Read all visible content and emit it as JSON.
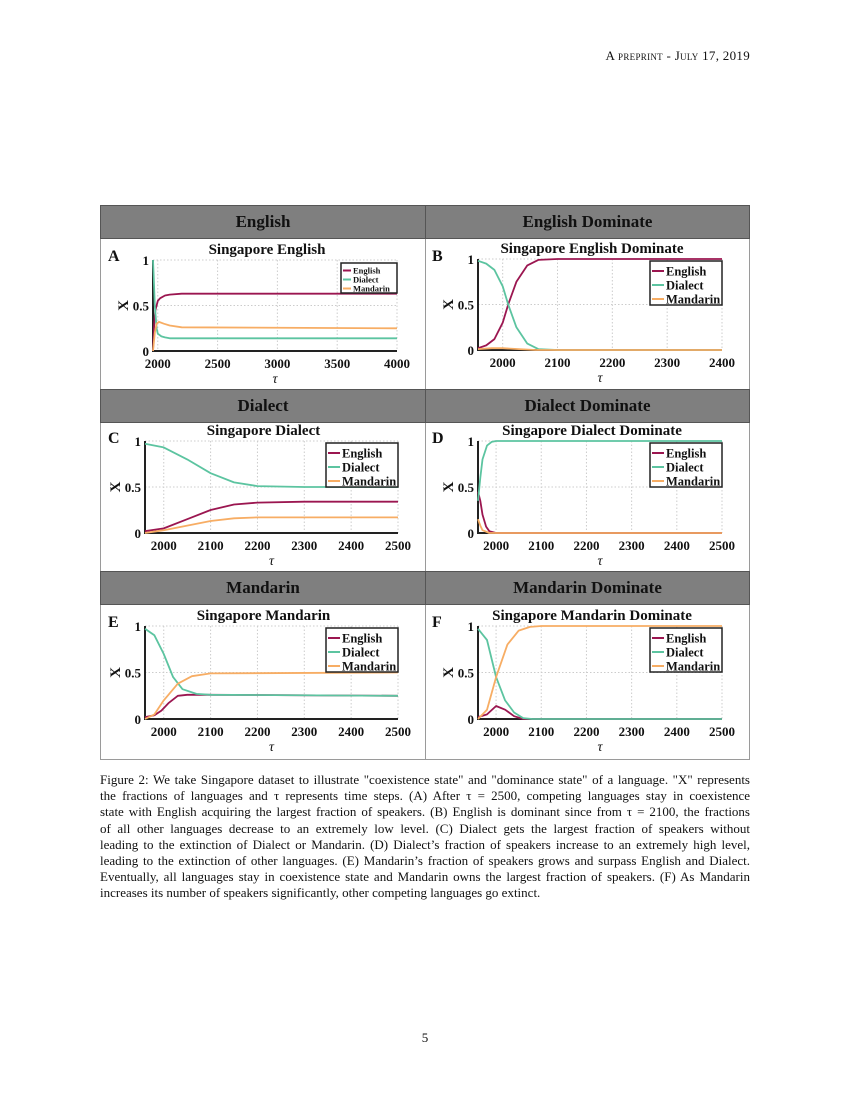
{
  "header": {
    "running_head": "A preprint - July 17, 2019"
  },
  "figure": {
    "row_headers": [
      "English",
      "English Dominate",
      "Dialect",
      "Dialect Dominate",
      "Mandarin",
      "Mandarin Dominate"
    ],
    "colors": {
      "English": "#9b1650",
      "Dialect": "#5cc4a0",
      "Mandarin": "#f7ad64",
      "header_bar": "#7f7f7f"
    }
  },
  "chart_data": [
    {
      "panel": "A",
      "type": "line",
      "title": "Singapore English",
      "xlabel": "τ",
      "ylabel": "X",
      "xlim": [
        1960,
        4000
      ],
      "ylim": [
        0,
        1
      ],
      "xticks": [
        "2000",
        "2500",
        "3000",
        "3500",
        "4000"
      ],
      "xtick_values": [
        2000,
        2500,
        3000,
        3500,
        4000
      ],
      "yticks": [
        "0",
        "0.5",
        "1"
      ],
      "grid": true,
      "legend": "top-right",
      "series": [
        {
          "name": "English",
          "x": [
            1960,
            1970,
            1980,
            2000,
            2020,
            2060,
            2100,
            2200,
            4000
          ],
          "y": [
            0,
            0.3,
            0.45,
            0.55,
            0.58,
            0.61,
            0.62,
            0.63,
            0.63
          ]
        },
        {
          "name": "Dialect",
          "x": [
            1960,
            1965,
            1975,
            1990,
            2000,
            2030,
            2060,
            2100,
            4000
          ],
          "y": [
            1,
            0.85,
            0.5,
            0.25,
            0.19,
            0.16,
            0.15,
            0.14,
            0.14
          ]
        },
        {
          "name": "Mandarin",
          "x": [
            1960,
            1975,
            1990,
            2010,
            2050,
            2100,
            2200,
            4000
          ],
          "y": [
            0,
            0.2,
            0.3,
            0.32,
            0.3,
            0.28,
            0.26,
            0.25
          ]
        }
      ]
    },
    {
      "panel": "B",
      "type": "line",
      "title": "Singapore English Dominate",
      "xlabel": "τ",
      "ylabel": "X",
      "xlim": [
        1955,
        2400
      ],
      "ylim": [
        0,
        1
      ],
      "xticks": [
        "2000",
        "2100",
        "2200",
        "2300",
        "2400"
      ],
      "xtick_values": [
        2000,
        2100,
        2200,
        2300,
        2400
      ],
      "yticks": [
        "0",
        "0.5",
        "1"
      ],
      "grid": true,
      "legend": "top-right",
      "series": [
        {
          "name": "English",
          "x": [
            1955,
            1970,
            1985,
            2000,
            2010,
            2025,
            2045,
            2065,
            2100,
            2400
          ],
          "y": [
            0.02,
            0.05,
            0.12,
            0.3,
            0.5,
            0.75,
            0.93,
            0.99,
            1,
            1
          ]
        },
        {
          "name": "Dialect",
          "x": [
            1955,
            1970,
            1985,
            2000,
            2010,
            2025,
            2045,
            2065,
            2100,
            2400
          ],
          "y": [
            0.98,
            0.95,
            0.88,
            0.7,
            0.5,
            0.25,
            0.07,
            0.01,
            0,
            0
          ]
        },
        {
          "name": "Mandarin",
          "x": [
            1955,
            1980,
            2000,
            2030,
            2060,
            2400
          ],
          "y": [
            0.01,
            0.02,
            0.02,
            0.01,
            0,
            0
          ]
        }
      ]
    },
    {
      "panel": "C",
      "type": "line",
      "title": "Singapore Dialect",
      "xlabel": "τ",
      "ylabel": "X",
      "xlim": [
        1960,
        2500
      ],
      "ylim": [
        0,
        1
      ],
      "xticks": [
        "2000",
        "2100",
        "2200",
        "2300",
        "2400",
        "2500"
      ],
      "xtick_values": [
        2000,
        2100,
        2200,
        2300,
        2400,
        2500
      ],
      "yticks": [
        "0",
        "0.5",
        "1"
      ],
      "grid": true,
      "legend": "top-right",
      "series": [
        {
          "name": "English",
          "x": [
            1960,
            2000,
            2050,
            2100,
            2150,
            2200,
            2300,
            2500
          ],
          "y": [
            0.02,
            0.05,
            0.15,
            0.25,
            0.31,
            0.33,
            0.34,
            0.34
          ]
        },
        {
          "name": "Dialect",
          "x": [
            1960,
            2000,
            2050,
            2100,
            2150,
            2200,
            2300,
            2500
          ],
          "y": [
            0.97,
            0.93,
            0.8,
            0.65,
            0.55,
            0.51,
            0.5,
            0.5
          ]
        },
        {
          "name": "Mandarin",
          "x": [
            1960,
            2000,
            2050,
            2100,
            2150,
            2200,
            2500
          ],
          "y": [
            0,
            0.03,
            0.08,
            0.13,
            0.16,
            0.17,
            0.17
          ]
        }
      ]
    },
    {
      "panel": "D",
      "type": "line",
      "title": "Singapore Dialect Dominate",
      "xlabel": "τ",
      "ylabel": "X",
      "xlim": [
        1960,
        2500
      ],
      "ylim": [
        0,
        1
      ],
      "xticks": [
        "2000",
        "2100",
        "2200",
        "2300",
        "2400",
        "2500"
      ],
      "xtick_values": [
        2000,
        2100,
        2200,
        2300,
        2400,
        2500
      ],
      "yticks": [
        "0",
        "0.5",
        "1"
      ],
      "grid": true,
      "legend": "top-right",
      "series": [
        {
          "name": "English",
          "x": [
            1960,
            1965,
            1970,
            1978,
            1985,
            2000,
            2500
          ],
          "y": [
            0.45,
            0.35,
            0.2,
            0.07,
            0.02,
            0,
            0
          ]
        },
        {
          "name": "Dialect",
          "x": [
            1960,
            1965,
            1970,
            1980,
            1990,
            2000,
            2500
          ],
          "y": [
            0.35,
            0.6,
            0.8,
            0.95,
            0.99,
            1,
            1
          ]
        },
        {
          "name": "Mandarin",
          "x": [
            1960,
            1965,
            1970,
            1985,
            2500
          ],
          "y": [
            0.15,
            0.08,
            0.03,
            0,
            0
          ]
        }
      ]
    },
    {
      "panel": "E",
      "type": "line",
      "title": "Singapore Mandarin",
      "xlabel": "τ",
      "ylabel": "X",
      "xlim": [
        1960,
        2500
      ],
      "ylim": [
        0,
        1
      ],
      "xticks": [
        "2000",
        "2100",
        "2200",
        "2300",
        "2400",
        "2500"
      ],
      "xtick_values": [
        2000,
        2100,
        2200,
        2300,
        2400,
        2500
      ],
      "yticks": [
        "0",
        "0.5",
        "1"
      ],
      "grid": true,
      "legend": "top-right",
      "series": [
        {
          "name": "English",
          "x": [
            1960,
            1980,
            1995,
            2010,
            2030,
            2050,
            2100,
            2500
          ],
          "y": [
            0.02,
            0.04,
            0.09,
            0.17,
            0.25,
            0.26,
            0.26,
            0.25
          ]
        },
        {
          "name": "Dialect",
          "x": [
            1960,
            1980,
            2000,
            2020,
            2040,
            2070,
            2100,
            2500
          ],
          "y": [
            0.97,
            0.9,
            0.7,
            0.45,
            0.32,
            0.27,
            0.26,
            0.25
          ]
        },
        {
          "name": "Mandarin",
          "x": [
            1960,
            1980,
            2000,
            2030,
            2060,
            2100,
            2500
          ],
          "y": [
            0,
            0.05,
            0.2,
            0.38,
            0.46,
            0.49,
            0.5
          ]
        }
      ]
    },
    {
      "panel": "F",
      "type": "line",
      "title": "Singapore Mandarin Dominate",
      "xlabel": "τ",
      "ylabel": "X",
      "xlim": [
        1960,
        2500
      ],
      "ylim": [
        0,
        1
      ],
      "xticks": [
        "2000",
        "2100",
        "2200",
        "2300",
        "2400",
        "2500"
      ],
      "xtick_values": [
        2000,
        2100,
        2200,
        2300,
        2400,
        2500
      ],
      "yticks": [
        "0",
        "0.5",
        "1"
      ],
      "grid": true,
      "legend": "top-right",
      "series": [
        {
          "name": "English",
          "x": [
            1960,
            1980,
            2000,
            2020,
            2040,
            2060,
            2500
          ],
          "y": [
            0.02,
            0.05,
            0.14,
            0.1,
            0.03,
            0,
            0
          ]
        },
        {
          "name": "Dialect",
          "x": [
            1960,
            1980,
            2000,
            2020,
            2040,
            2060,
            2080,
            2500
          ],
          "y": [
            0.97,
            0.85,
            0.45,
            0.2,
            0.07,
            0.01,
            0,
            0
          ]
        },
        {
          "name": "Mandarin",
          "x": [
            1960,
            1980,
            2000,
            2025,
            2050,
            2075,
            2100,
            2500
          ],
          "y": [
            0,
            0.1,
            0.45,
            0.8,
            0.95,
            0.99,
            1,
            1
          ]
        }
      ]
    }
  ],
  "caption": {
    "lines": [
      "Figure 2: We take Singapore dataset to illustrate \"coexistence state\" and \"dominance state\" of a language. \"X\" represents",
      "the fractions of languages and τ represents time steps. (A) After τ = 2500, competing languages stay in coexistence",
      "state with English acquiring the largest fraction of speakers. (B) English is dominant since from τ = 2100, the fractions",
      "of all other languages decrease to an extremely low level. (C) Dialect gets the largest fraction of speakers without",
      "leading to the extinction of Dialect or Mandarin. (D) Dialect’s fraction of speakers increase to an extremely high level,",
      "leading to the extinction of other languages. (E) Mandarin’s fraction of speakers grows and surpass English and Dialect.",
      "Eventually, all languages stay in coexistence state and Mandarin owns the largest fraction of speakers. (F) As Mandarin",
      "increases its number of speakers significantly, other competing languages go extinct."
    ]
  },
  "footer": {
    "page_number": "5"
  }
}
